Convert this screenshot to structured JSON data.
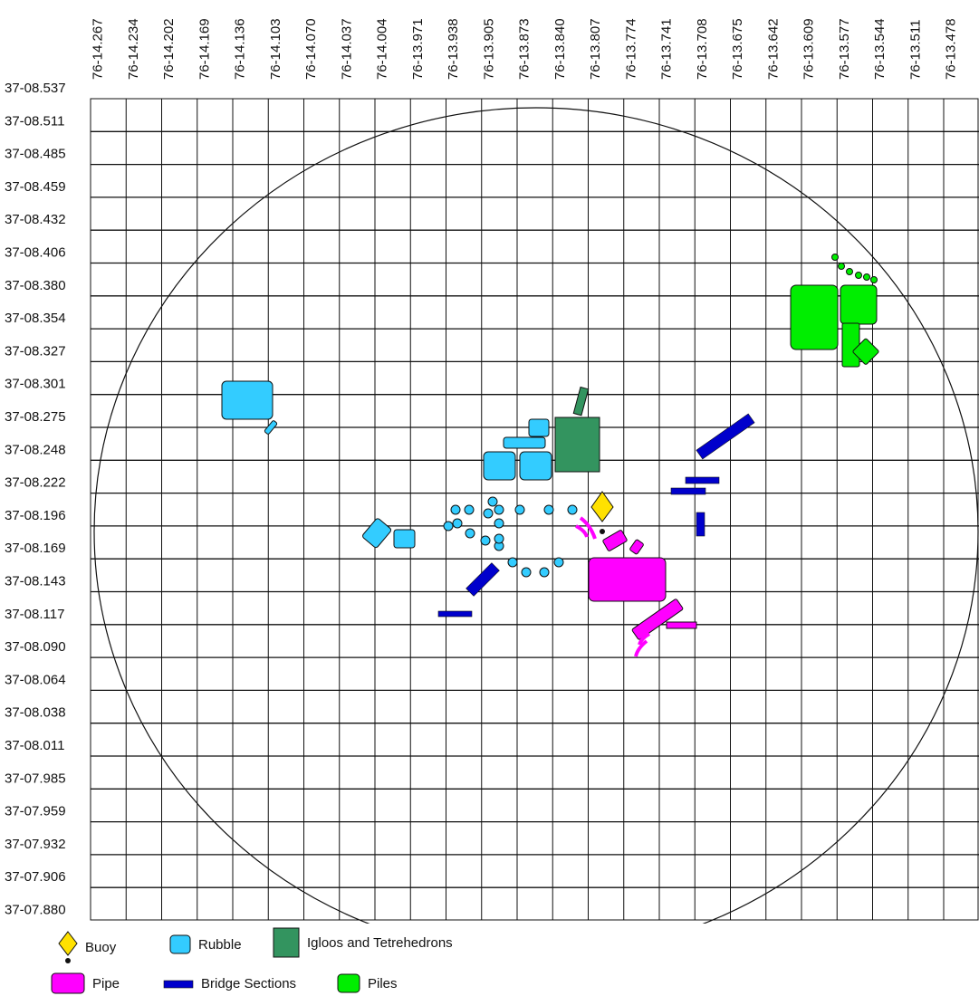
{
  "map": {
    "longitude_labels": [
      "76-14.267",
      "76-14.234",
      "76-14.202",
      "76-14.169",
      "76-14.136",
      "76-14.103",
      "76-14.070",
      "76-14.037",
      "76-14.004",
      "76-13.971",
      "76-13.938",
      "76-13.905",
      "76-13.873",
      "76-13.840",
      "76-13.807",
      "76-13.774",
      "76-13.741",
      "76-13.708",
      "76-13.675",
      "76-13.642",
      "76-13.609",
      "76-13.577",
      "76-13.544",
      "76-13.511",
      "76-13.478"
    ],
    "latitude_labels": [
      "37-08.537",
      "37-08.511",
      "37-08.485",
      "37-08.459",
      "37-08.432",
      "37-08.406",
      "37-08.380",
      "37-08.354",
      "37-08.327",
      "37-08.301",
      "37-08.275",
      "37-08.248",
      "37-08.222",
      "37-08.196",
      "37-08.169",
      "37-08.143",
      "37-08.117",
      "37-08.090",
      "37-08.064",
      "37-08.038",
      "37-08.011",
      "37-07.985",
      "37-07.959",
      "37-07.932",
      "37-07.906",
      "37-07.880"
    ],
    "colors": {
      "buoy": "#ffe100",
      "rubble": "#33ccff",
      "igloos": "#33945f",
      "pipe": "#ff00ff",
      "bridge": "#0000cc",
      "piles": "#00ee00",
      "grid": "#111111"
    }
  },
  "legend": {
    "items": [
      {
        "label": "Buoy",
        "icon": "diamond-marker-icon",
        "color": "#ffe100"
      },
      {
        "label": "Rubble",
        "icon": "rounded-square-icon",
        "color": "#33ccff"
      },
      {
        "label": "Igloos and Tetrehedrons",
        "icon": "square-icon",
        "color": "#33945f"
      },
      {
        "label": "Pipe",
        "icon": "rounded-rect-icon",
        "color": "#ff00ff"
      },
      {
        "label": "Bridge Sections",
        "icon": "bar-icon",
        "color": "#0000cc"
      },
      {
        "label": "Piles",
        "icon": "rounded-square-icon",
        "color": "#00ee00"
      }
    ]
  }
}
